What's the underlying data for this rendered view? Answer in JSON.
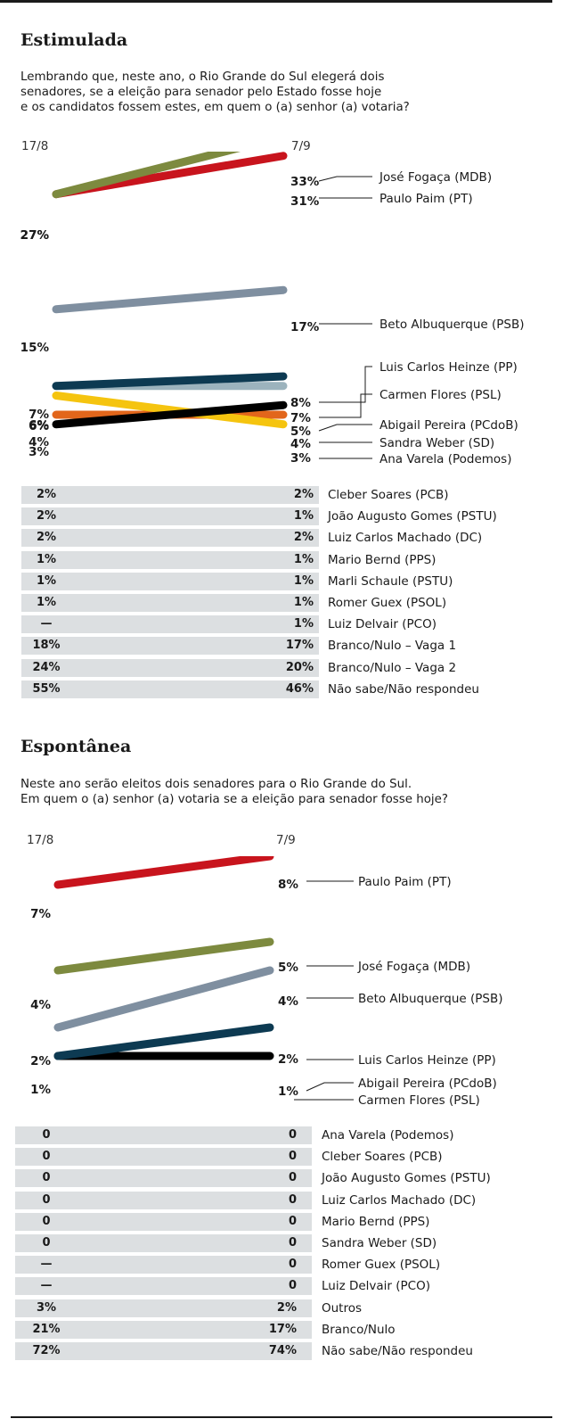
{
  "sections": [
    {
      "title": "Estimulada",
      "question": "Lembrando que, neste ano, o Rio Grande do Sul elegerá dois\nsenadores, se a eleição para senador pelo Estado fosse hoje\ne os candidatos fossem estes, em quem o (a) senhor (a) votaria?",
      "dates": [
        "17/8",
        "7/9"
      ],
      "table": [
        {
          "v1": "2%",
          "v2": "2%",
          "name": "Cleber Soares (PCB)"
        },
        {
          "v1": "2%",
          "v2": "1%",
          "name": "João Augusto Gomes (PSTU)"
        },
        {
          "v1": "2%",
          "v2": "2%",
          "name": "Luiz Carlos Machado (DC)"
        },
        {
          "v1": "1%",
          "v2": "1%",
          "name": "Mario Bernd (PPS)"
        },
        {
          "v1": "1%",
          "v2": "1%",
          "name": "Marli Schaule (PSTU)"
        },
        {
          "v1": "1%",
          "v2": "1%",
          "name": "Romer Guex (PSOL)"
        },
        {
          "v1": "—",
          "v2": "1%",
          "name": "Luiz Delvair (PCO)"
        },
        {
          "v1": "18%",
          "v2": "17%",
          "name": "Branco/Nulo – Vaga 1"
        },
        {
          "v1": "24%",
          "v2": "20%",
          "name": "Branco/Nulo – Vaga 2"
        },
        {
          "v1": "55%",
          "v2": "46%",
          "name": "Não sabe/Não respondeu"
        }
      ]
    },
    {
      "title": "Espontânea",
      "question": "Neste ano serão eleitos dois senadores para o Rio Grande do Sul.\nEm quem o (a) senhor (a) votaria se a eleição para senador fosse hoje?",
      "dates": [
        "17/8",
        "7/9"
      ],
      "table": [
        {
          "v1": "0",
          "v2": "0",
          "name": "Ana Varela (Podemos)"
        },
        {
          "v1": "0",
          "v2": "0",
          "name": "Cleber Soares (PCB)"
        },
        {
          "v1": "0",
          "v2": "0",
          "name": "João Augusto Gomes (PSTU)"
        },
        {
          "v1": "0",
          "v2": "0",
          "name": "Luiz Carlos Machado (DC)"
        },
        {
          "v1": "0",
          "v2": "0",
          "name": "Mario Bernd (PPS)"
        },
        {
          "v1": "0",
          "v2": "0",
          "name": "Sandra Weber (SD)"
        },
        {
          "v1": "—",
          "v2": "0",
          "name": "Romer Guex (PSOL)"
        },
        {
          "v1": "—",
          "v2": "0",
          "name": "Luiz Delvair (PCO)"
        },
        {
          "v1": "3%",
          "v2": "2%",
          "name": "Outros"
        },
        {
          "v1": "21%",
          "v2": "17%",
          "name": "Branco/Nulo"
        },
        {
          "v1": "72%",
          "v2": "74%",
          "name": "Não sabe/Não respondeu"
        }
      ]
    }
  ],
  "chart_data": [
    {
      "type": "line",
      "x": [
        "17/8",
        "7/9"
      ],
      "series": [
        {
          "name": "José Fogaça (MDB)",
          "values": [
            27,
            33
          ],
          "labels": [
            "27%",
            "33%"
          ],
          "color": "#7d8a3f"
        },
        {
          "name": "Paulo Paim (PT)",
          "values": [
            27,
            31
          ],
          "labels": [
            "27%",
            "31%"
          ],
          "color": "#c8141d"
        },
        {
          "name": "Beto Albuquerque (PSB)",
          "values": [
            15,
            17
          ],
          "labels": [
            "15%",
            "17%"
          ],
          "color": "#7f8fa0"
        },
        {
          "name": "Luis Carlos Heinze (PP)",
          "values": [
            7,
            8
          ],
          "labels": [
            "7%",
            "8%"
          ],
          "color": "#0d3a52"
        },
        {
          "name": "Carmen Flores (PSL)",
          "values": [
            7,
            7
          ],
          "labels": [
            "",
            "7%"
          ],
          "color": "#9cb3bd"
        },
        {
          "name": "Abigail Pereira (PCdoB)",
          "values": [
            3,
            5
          ],
          "labels": [
            "3%",
            "5%"
          ],
          "color": "#000000"
        },
        {
          "name": "Sandra Weber (SD)",
          "values": [
            4,
            4
          ],
          "labels": [
            "4%",
            "4%"
          ],
          "color": "#e2661b"
        },
        {
          "name": "Ana Varela (Podemos)",
          "values": [
            6,
            3
          ],
          "labels": [
            "6%",
            "3%"
          ],
          "color": "#f5c40f"
        }
      ]
    },
    {
      "type": "line",
      "x": [
        "17/8",
        "7/9"
      ],
      "series": [
        {
          "name": "Paulo Paim (PT)",
          "values": [
            7,
            8
          ],
          "labels": [
            "7%",
            "8%"
          ],
          "color": "#c8141d"
        },
        {
          "name": "José Fogaça (MDB)",
          "values": [
            4,
            5
          ],
          "labels": [
            "4%",
            "5%"
          ],
          "color": "#7d8a3f"
        },
        {
          "name": "Beto Albuquerque (PSB)",
          "values": [
            2,
            4
          ],
          "labels": [
            "2%",
            "4%"
          ],
          "color": "#7f8fa0"
        },
        {
          "name": "Luis Carlos Heinze (PP)",
          "values": [
            1,
            2
          ],
          "labels": [
            "",
            "2%"
          ],
          "color": "#0d3a52"
        },
        {
          "name": "Abigail Pereira (PCdoB)",
          "values": [
            1,
            1
          ],
          "labels": [
            "1%",
            "1%"
          ],
          "color": "#000000"
        },
        {
          "name": "Carmen Flores (PSL)",
          "values": [
            1,
            1
          ],
          "labels": [
            "",
            ""
          ],
          "color": "#9cb3bd"
        }
      ]
    }
  ]
}
